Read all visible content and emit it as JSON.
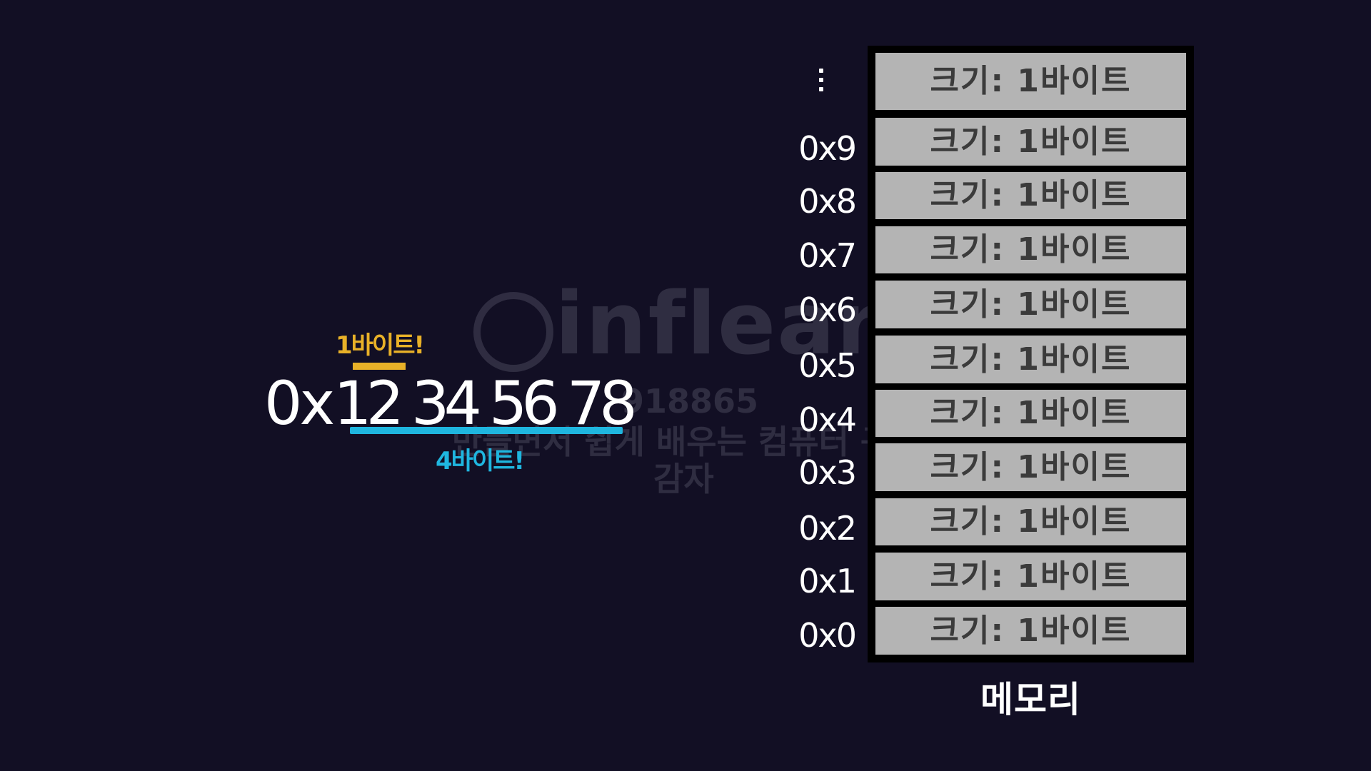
{
  "value_annotation": {
    "prefix": "0x",
    "bytes": [
      "12",
      "34",
      "56",
      "78"
    ],
    "one_byte_label": "1바이트!",
    "four_byte_label": "4바이트!",
    "colors": {
      "one_byte": "#e8b128",
      "four_byte": "#1fb6df",
      "value": "#ffffff"
    }
  },
  "watermark": {
    "logo_text": "inflearn",
    "id": "918865",
    "course": "만들면서 쉽게 배우는 컴퓨터 구조",
    "user": "감자"
  },
  "memory": {
    "ellipsis": "⋮",
    "addresses": [
      "0x9",
      "0x8",
      "0x7",
      "0x6",
      "0x5",
      "0x4",
      "0x3",
      "0x2",
      "0x1",
      "0x0"
    ],
    "cell_label": "크기: 1바이트",
    "cell_count": 11,
    "label": "메모리",
    "colors": {
      "frame": "#000000",
      "cell": "#b4b4b4",
      "cell_text": "#3b3b3b"
    }
  },
  "background_color": "#120f24"
}
